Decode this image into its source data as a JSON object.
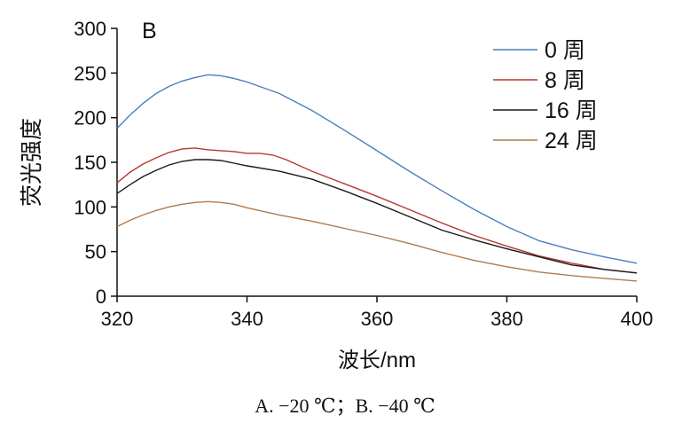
{
  "chart_data": {
    "type": "line",
    "panel_label": "B",
    "xlabel": "波长/nm",
    "ylabel": "荧光强度",
    "xlim": [
      320,
      400
    ],
    "ylim": [
      0,
      300
    ],
    "xticks": [
      320,
      340,
      360,
      380,
      400
    ],
    "yticks": [
      0,
      50,
      100,
      150,
      200,
      250,
      300
    ],
    "legend_position": "top-right",
    "series": [
      {
        "name": "0 周",
        "color": "#4a7fbf",
        "x": [
          320,
          322,
          324,
          326,
          328,
          330,
          332,
          334,
          336,
          338,
          340,
          345,
          350,
          355,
          360,
          365,
          370,
          375,
          380,
          385,
          390,
          395,
          400
        ],
        "y": [
          188,
          203,
          216,
          227,
          235,
          241,
          245,
          248,
          247,
          244,
          240,
          227,
          208,
          186,
          163,
          140,
          118,
          97,
          78,
          62,
          52,
          44,
          37
        ]
      },
      {
        "name": "8 周",
        "color": "#b33a2f",
        "x": [
          320,
          322,
          324,
          326,
          328,
          330,
          332,
          334,
          336,
          338,
          340,
          342,
          344,
          346,
          350,
          355,
          360,
          365,
          370,
          375,
          380,
          385,
          390,
          395,
          400
        ],
        "y": [
          127,
          139,
          148,
          155,
          161,
          165,
          166,
          164,
          163,
          162,
          160,
          160,
          158,
          153,
          140,
          126,
          112,
          97,
          82,
          68,
          56,
          45,
          37,
          30,
          26
        ]
      },
      {
        "name": "16 周",
        "color": "#1a1a1a",
        "x": [
          320,
          322,
          324,
          326,
          328,
          330,
          332,
          334,
          336,
          338,
          340,
          345,
          350,
          355,
          360,
          365,
          370,
          375,
          380,
          385,
          390,
          395,
          400
        ],
        "y": [
          115,
          125,
          134,
          141,
          147,
          151,
          153,
          153,
          152,
          149,
          146,
          140,
          131,
          118,
          104,
          89,
          74,
          63,
          53,
          44,
          35,
          30,
          26
        ]
      },
      {
        "name": "24 周",
        "color": "#b07a4a",
        "x": [
          320,
          322,
          324,
          326,
          328,
          330,
          332,
          334,
          336,
          338,
          340,
          345,
          350,
          355,
          360,
          365,
          370,
          375,
          380,
          385,
          390,
          395,
          400
        ],
        "y": [
          78,
          85,
          91,
          96,
          100,
          103,
          105,
          106,
          105,
          103,
          99,
          91,
          84,
          76,
          68,
          59,
          49,
          40,
          33,
          27,
          23,
          20,
          17
        ]
      }
    ]
  },
  "caption": "A. −20 ℃；B. −40 ℃"
}
